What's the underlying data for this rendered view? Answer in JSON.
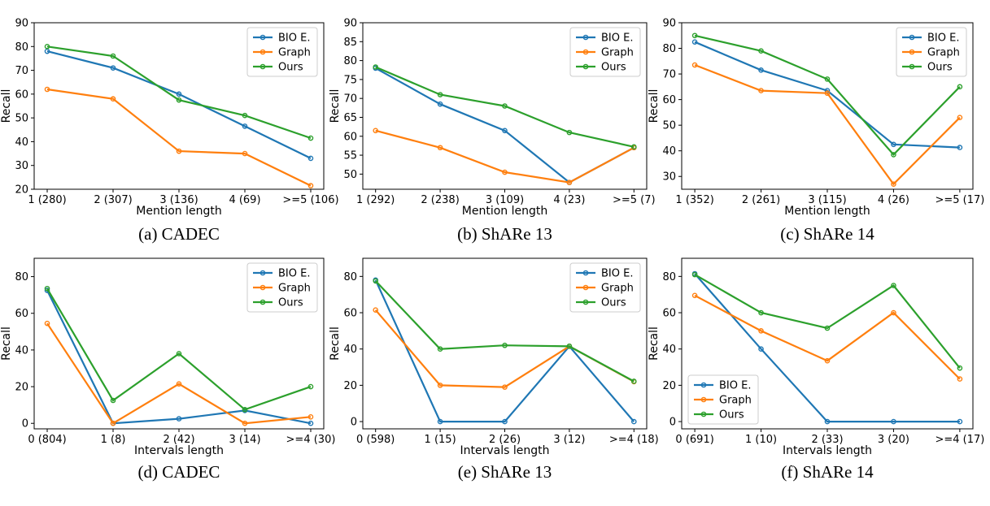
{
  "colors": {
    "BIO E.": "#1f77b4",
    "Graph": "#ff7f0e",
    "Ours": "#2ca02c"
  },
  "chart_data": [
    {
      "type": "line",
      "caption": "(a) CADEC",
      "categories": [
        "1 (280)",
        "2 (307)",
        "3 (136)",
        "4 (69)",
        ">=5 (106)"
      ],
      "xlabel": "Mention length",
      "ylabel": "Recall",
      "ylim": [
        20,
        90
      ],
      "yticks": [
        20,
        30,
        40,
        50,
        60,
        70,
        80,
        90
      ],
      "legend": "top-right",
      "grid": false,
      "series": [
        {
          "name": "BIO E.",
          "values": [
            78,
            71,
            60,
            46.5,
            33
          ]
        },
        {
          "name": "Graph",
          "values": [
            62,
            58,
            36,
            35,
            21.5
          ]
        },
        {
          "name": "Ours",
          "values": [
            80,
            76,
            57.5,
            51,
            41.5
          ]
        }
      ]
    },
    {
      "type": "line",
      "caption": "(b) ShARe 13",
      "categories": [
        "1 (292)",
        "2 (238)",
        "3 (109)",
        "4 (23)",
        ">=5 (7)"
      ],
      "xlabel": "Mention length",
      "ylabel": "Recall",
      "ylim": [
        46,
        90
      ],
      "yticks": [
        50,
        55,
        60,
        65,
        70,
        75,
        80,
        85,
        90
      ],
      "legend": "top-right",
      "grid": false,
      "series": [
        {
          "name": "BIO E.",
          "values": [
            78,
            68.5,
            61.5,
            47.8,
            57
          ]
        },
        {
          "name": "Graph",
          "values": [
            61.5,
            57,
            50.5,
            47.8,
            57
          ]
        },
        {
          "name": "Ours",
          "values": [
            78.3,
            71,
            68,
            61,
            57.2
          ]
        }
      ]
    },
    {
      "type": "line",
      "caption": "(c) ShARe 14",
      "categories": [
        "1 (352)",
        "2 (261)",
        "3 (115)",
        "4 (26)",
        ">=5 (17)"
      ],
      "xlabel": "Mention length",
      "ylabel": "Recall",
      "ylim": [
        25,
        90
      ],
      "yticks": [
        30,
        40,
        50,
        60,
        70,
        80,
        90
      ],
      "legend": "top-right",
      "grid": false,
      "series": [
        {
          "name": "BIO E.",
          "values": [
            82.5,
            71.5,
            63.5,
            42.5,
            41.3
          ]
        },
        {
          "name": "Graph",
          "values": [
            73.5,
            63.5,
            62.5,
            27,
            53
          ]
        },
        {
          "name": "Ours",
          "values": [
            85,
            79,
            68,
            38.5,
            65
          ]
        }
      ]
    },
    {
      "type": "line",
      "caption": "(d) CADEC",
      "categories": [
        "0 (804)",
        "1 (8)",
        "2 (42)",
        "3 (14)",
        ">=4 (30)"
      ],
      "xlabel": "Intervals length",
      "ylabel": "Recall",
      "ylim": [
        -3,
        90
      ],
      "yticks": [
        0,
        20,
        40,
        60,
        80
      ],
      "legend": "top-right",
      "grid": false,
      "series": [
        {
          "name": "BIO E.",
          "values": [
            72.5,
            0,
            2.5,
            7,
            0
          ]
        },
        {
          "name": "Graph",
          "values": [
            54.5,
            0,
            21.5,
            0,
            3.5
          ]
        },
        {
          "name": "Ours",
          "values": [
            73.5,
            12.5,
            38,
            7.5,
            20
          ]
        }
      ]
    },
    {
      "type": "line",
      "caption": "(e) ShARe 13",
      "categories": [
        "0 (598)",
        "1 (15)",
        "2 (26)",
        "3 (12)",
        ">=4 (18)"
      ],
      "xlabel": "Intervals length",
      "ylabel": "Recall",
      "ylim": [
        -4,
        90
      ],
      "yticks": [
        0,
        20,
        40,
        60,
        80
      ],
      "legend": "top-right",
      "grid": false,
      "series": [
        {
          "name": "BIO E.",
          "values": [
            78,
            0,
            0,
            41.5,
            0
          ]
        },
        {
          "name": "Graph",
          "values": [
            61.5,
            20,
            19,
            41.5,
            22
          ]
        },
        {
          "name": "Ours",
          "values": [
            77.5,
            40,
            42,
            41.5,
            22.2
          ]
        }
      ]
    },
    {
      "type": "line",
      "caption": "(f) ShARe 14",
      "categories": [
        "0 (691)",
        "1 (10)",
        "2 (33)",
        "3 (20)",
        ">=4 (17)"
      ],
      "xlabel": "Intervals length",
      "ylabel": "Recall",
      "ylim": [
        -4,
        90
      ],
      "yticks": [
        0,
        20,
        40,
        60,
        80
      ],
      "legend": "bottom-left",
      "grid": false,
      "series": [
        {
          "name": "BIO E.",
          "values": [
            81.5,
            40,
            0,
            0,
            0
          ]
        },
        {
          "name": "Graph",
          "values": [
            69.5,
            50,
            33.5,
            60,
            23.5
          ]
        },
        {
          "name": "Ours",
          "values": [
            81,
            60,
            51.5,
            75,
            29.5
          ]
        }
      ]
    }
  ]
}
